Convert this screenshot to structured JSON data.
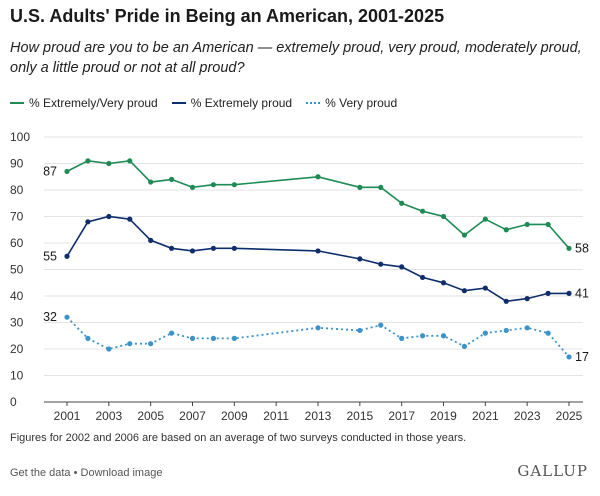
{
  "title": "U.S. Adults' Pride in Being an American, 2001-2025",
  "subtitle": "How proud are you to be an American — extremely proud, very proud, moderately proud, only a little proud or not at all proud?",
  "footnote": "Figures for 2002 and 2006 are based on an average of two surveys conducted in those years.",
  "footer": {
    "get_data": "Get the data",
    "separator": " • ",
    "download": "Download image"
  },
  "brand": "GALLUP",
  "chart_data": {
    "type": "line",
    "ylim": [
      0,
      100
    ],
    "yticks": [
      0,
      10,
      20,
      30,
      40,
      50,
      60,
      70,
      80,
      90,
      100
    ],
    "xlim": [
      2001,
      2025
    ],
    "xticks": [
      2001,
      2003,
      2005,
      2007,
      2009,
      2011,
      2013,
      2015,
      2017,
      2019,
      2021,
      2023,
      2025
    ],
    "grid": true,
    "legend": "top-left",
    "x": [
      2001,
      2002,
      2003,
      2004,
      2005,
      2006,
      2007,
      2008,
      2009,
      2013,
      2015,
      2016,
      2017,
      2018,
      2019,
      2020,
      2021,
      2022,
      2023,
      2024,
      2025
    ],
    "series": [
      {
        "name": "% Extremely/Very proud",
        "color": "#1e8b55",
        "style": "solid",
        "values": [
          87,
          91,
          90,
          91,
          83,
          84,
          81,
          82,
          82,
          85,
          81,
          81,
          75,
          72,
          70,
          63,
          69,
          65,
          67,
          67,
          58
        ],
        "start_label": "87",
        "end_label": "58"
      },
      {
        "name": "% Extremely proud",
        "color": "#0d2d6b",
        "style": "solid",
        "values": [
          55,
          68,
          70,
          69,
          61,
          58,
          57,
          58,
          58,
          57,
          54,
          52,
          51,
          47,
          45,
          42,
          43,
          38,
          39,
          41,
          41
        ],
        "start_label": "55",
        "end_label": "41"
      },
      {
        "name": "% Very proud",
        "color": "#3a93c9",
        "style": "dotted",
        "values": [
          32,
          24,
          20,
          22,
          22,
          26,
          24,
          24,
          24,
          28,
          27,
          29,
          24,
          25,
          25,
          21,
          26,
          27,
          28,
          26,
          17
        ],
        "start_label": "32",
        "end_label": "17"
      }
    ]
  }
}
